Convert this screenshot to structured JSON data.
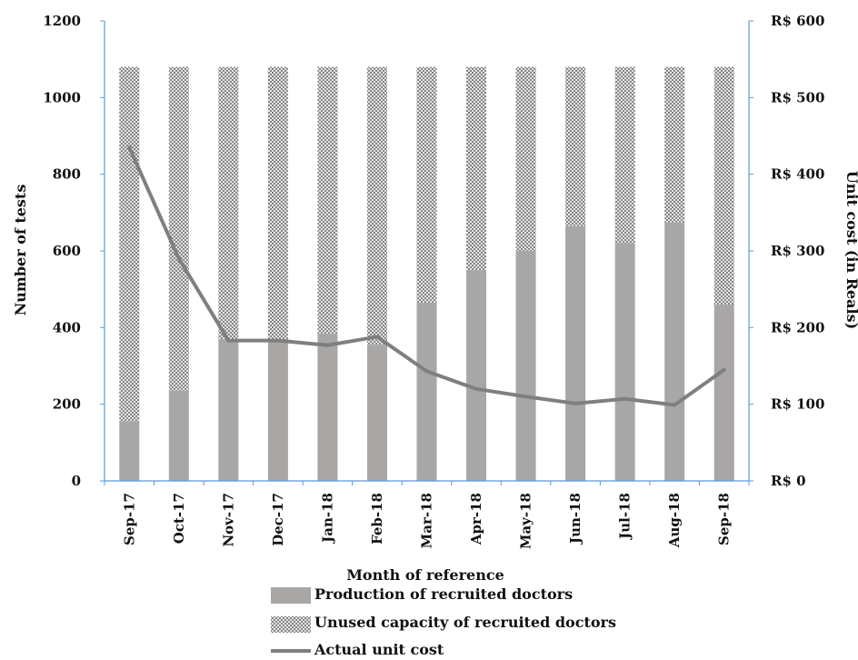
{
  "chart_data": {
    "type": "bar",
    "stacked": true,
    "categories": [
      "Sep-17",
      "Oct-17",
      "Nov-17",
      "Dec-17",
      "Jan-18",
      "Feb-18",
      "Mar-18",
      "Apr-18",
      "May-18",
      "Jun-18",
      "Jul-18",
      "Aug-18",
      "Sep-18"
    ],
    "series": [
      {
        "name": "Production of recruited doctors",
        "type": "bar",
        "axis": "left",
        "color": "#a9a6a6",
        "values": [
          155,
          235,
          370,
          370,
          385,
          355,
          465,
          550,
          600,
          665,
          620,
          675,
          460
        ]
      },
      {
        "name": "Unused capacity of recruited doctors",
        "type": "bar",
        "axis": "left",
        "pattern": "crosshatch",
        "values": [
          925,
          845,
          710,
          710,
          695,
          725,
          615,
          530,
          480,
          415,
          460,
          405,
          620
        ]
      },
      {
        "name": "Actual unit cost",
        "type": "line",
        "axis": "right",
        "color": "#7f7f7f",
        "values": [
          435,
          290,
          183,
          183,
          177,
          188,
          143,
          120,
          110,
          101,
          107,
          99,
          145
        ]
      }
    ],
    "xlabel": "Month of reference",
    "ylabel": "Number of tests",
    "ylim": [
      0,
      1200
    ],
    "yticks": [
      "0",
      "200",
      "400",
      "600",
      "800",
      "1000",
      "1200"
    ],
    "y2label": "Unit cost (in Reals)",
    "y2lim": [
      0,
      600
    ],
    "y2ticks": [
      "R$ 0",
      "R$ 100",
      "R$ 200",
      "R$ 300",
      "R$ 400",
      "R$ 500",
      "R$ 600"
    ],
    "grid": false,
    "legend_position": "bottom",
    "axis_color": "#5b9bd5"
  }
}
